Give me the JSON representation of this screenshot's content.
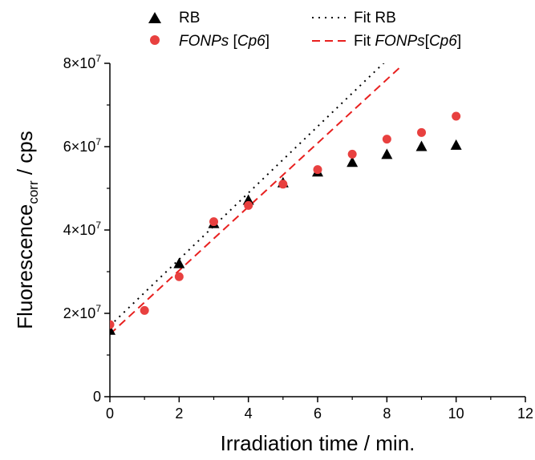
{
  "chart_data": {
    "type": "scatter",
    "title": "",
    "xlabel": "Irradiation time / min.",
    "ylabel": {
      "base": "Fluorescence",
      "sub": "corr",
      "suffix": " / cps"
    },
    "xlim": [
      0,
      12
    ],
    "ylim": [
      0,
      80000000
    ],
    "xticks": [
      0,
      2,
      4,
      6,
      8,
      10,
      12
    ],
    "xtick_labels": [
      "0",
      "2",
      "4",
      "6",
      "8",
      "10",
      "12"
    ],
    "yticks": [
      0,
      20000000,
      40000000,
      60000000,
      80000000
    ],
    "ytick_labels": [
      {
        "mant": "0",
        "exp": ""
      },
      {
        "mant": "2×10",
        "exp": "7"
      },
      {
        "mant": "4×10",
        "exp": "7"
      },
      {
        "mant": "6×10",
        "exp": "7"
      },
      {
        "mant": "8×10",
        "exp": "7"
      }
    ],
    "grid": false,
    "legend_position": "top",
    "series": [
      {
        "name": "RB",
        "kind": "scatter",
        "marker": "triangle",
        "color": "#000000",
        "x": [
          0,
          2,
          3,
          4,
          5,
          6,
          7,
          8,
          9,
          10
        ],
        "y": [
          16000000,
          32000000,
          41600000,
          47200000,
          51400000,
          54000000,
          56300000,
          58200000,
          60100000,
          60400000
        ]
      },
      {
        "name": "FONPs [Cp6]",
        "name_parts": [
          {
            "text": "FONPs",
            "italic": true
          },
          {
            "text": " [",
            "italic": false
          },
          {
            "text": "Cp6",
            "italic": true
          },
          {
            "text": "]",
            "italic": false
          }
        ],
        "kind": "scatter",
        "marker": "circle",
        "color": "#e8403f",
        "x": [
          0,
          1,
          2,
          3,
          4,
          5,
          6,
          7,
          8,
          9,
          10
        ],
        "y": [
          17300000,
          20700000,
          28800000,
          42000000,
          45900000,
          51000000,
          54500000,
          58200000,
          61800000,
          63400000,
          67300000
        ]
      },
      {
        "name": "Fit RB",
        "name_parts": [
          {
            "text": "Fit RB",
            "italic": false
          }
        ],
        "kind": "line",
        "dash": "dotted",
        "color": "#000000",
        "x": [
          0,
          8
        ],
        "y": [
          17000000,
          80800000
        ]
      },
      {
        "name": "Fit FONPs[Cp6]",
        "name_parts": [
          {
            "text": "Fit ",
            "italic": false
          },
          {
            "text": "FONPs",
            "italic": true
          },
          {
            "text": "[",
            "italic": false
          },
          {
            "text": "Cp6",
            "italic": true
          },
          {
            "text": "]",
            "italic": false
          }
        ],
        "kind": "line",
        "dash": "dashed",
        "color": "#e8201f",
        "x": [
          0,
          8.4
        ],
        "y": [
          15000000,
          79200000
        ]
      }
    ]
  }
}
